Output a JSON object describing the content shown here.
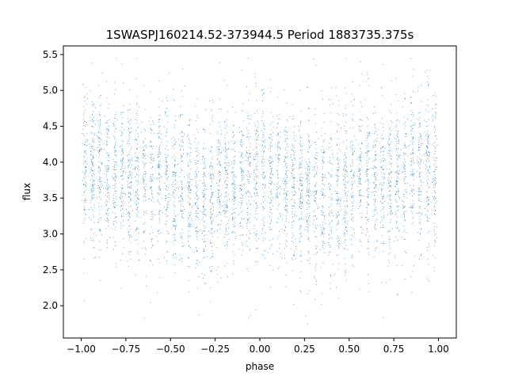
{
  "chart_data": {
    "type": "scatter",
    "title": "1SWASPJ160214.52-373944.5 Period 1883735.375s",
    "xlabel": "phase",
    "ylabel": "flux",
    "xlim": [
      -1.1,
      1.1
    ],
    "ylim": [
      1.55,
      5.62
    ],
    "xticks": [
      -1.0,
      -0.75,
      -0.5,
      -0.25,
      0.0,
      0.25,
      0.5,
      0.75,
      1.0
    ],
    "xtick_labels": [
      "−1.00",
      "−0.75",
      "−0.50",
      "−0.25",
      "0.00",
      "0.25",
      "0.50",
      "0.75",
      "1.00"
    ],
    "yticks": [
      2.0,
      2.5,
      3.0,
      3.5,
      4.0,
      4.5,
      5.0,
      5.5
    ],
    "ytick_labels": [
      "2.0",
      "2.5",
      "3.0",
      "3.5",
      "4.0",
      "4.5",
      "5.0",
      "5.5"
    ],
    "grid": false,
    "marker_color": "#1f77b4",
    "series": [
      {
        "x_range": [
          -1.0,
          1.0
        ],
        "symmetric_about_phase_zero": true,
        "central_flux_by_phase": [
          {
            "x": -1.0,
            "y": 3.9
          },
          {
            "x": -0.9,
            "y": 3.95
          },
          {
            "x": -0.75,
            "y": 3.75
          },
          {
            "x": -0.55,
            "y": 3.8
          },
          {
            "x": -0.4,
            "y": 3.55
          },
          {
            "x": -0.3,
            "y": 3.45
          },
          {
            "x": -0.2,
            "y": 3.65
          },
          {
            "x": -0.1,
            "y": 3.75
          },
          {
            "x": 0.0,
            "y": 3.85
          }
        ],
        "flux_spread": [
          2.6,
          5.2
        ],
        "flux_extremes": [
          1.75,
          5.45
        ]
      }
    ]
  }
}
